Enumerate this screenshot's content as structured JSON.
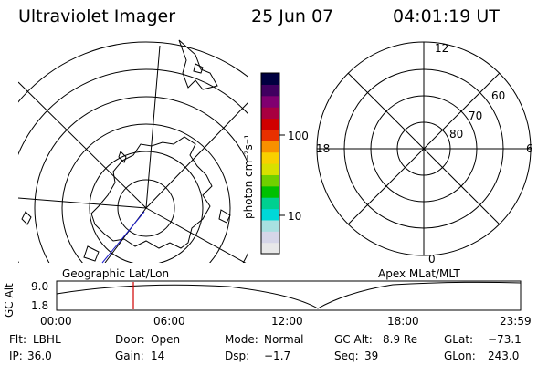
{
  "header": {
    "title": "Ultraviolet Imager",
    "date": "25 Jun 07",
    "time": "04:01:19 UT"
  },
  "colorbar": {
    "unit_label": "photon cm⁻²s⁻¹",
    "tick_labels": [
      "100",
      "10"
    ],
    "colors": [
      "#e8e8e8",
      "#d6d6e8",
      "#a8e0e0",
      "#00d8d8",
      "#00d090",
      "#00c000",
      "#70d000",
      "#d8e000",
      "#f8d000",
      "#f89000",
      "#e83000",
      "#d00000",
      "#a80040",
      "#800070",
      "#400060",
      "#000040"
    ]
  },
  "geo_map": {
    "label": "Geographic Lat/Lon"
  },
  "apex_map": {
    "label": "Apex MLat/MLT",
    "mlt_labels": [
      "12",
      "18",
      "6",
      "0"
    ],
    "mlat_labels": [
      "60",
      "70",
      "80"
    ]
  },
  "altitude_plot": {
    "ylabel": "GC Alt",
    "ytick_labels": [
      "9.0",
      "1.8"
    ],
    "xtick_labels": [
      "00:00",
      "06:00",
      "12:00",
      "18:00",
      "23:59"
    ],
    "marker_color": "#d00000"
  },
  "status": {
    "flt_label": "Flt:",
    "flt_value": "LBHL",
    "door_label": "Door:",
    "door_value": "Open",
    "mode_label": "Mode:",
    "mode_value": "Normal",
    "gcalt_label": "GC Alt:",
    "gcalt_value": "8.9 Re",
    "glat_label": "GLat:",
    "glat_value": "−73.1",
    "ip_label": "IP:",
    "ip_value": "36.0",
    "gain_label": "Gain:",
    "gain_value": "14",
    "dsp_label": "Dsp:",
    "dsp_value": "−1.7",
    "seq_label": "Seq:",
    "seq_value": "39",
    "glon_label": "GLon:",
    "glon_value": "243.0"
  }
}
